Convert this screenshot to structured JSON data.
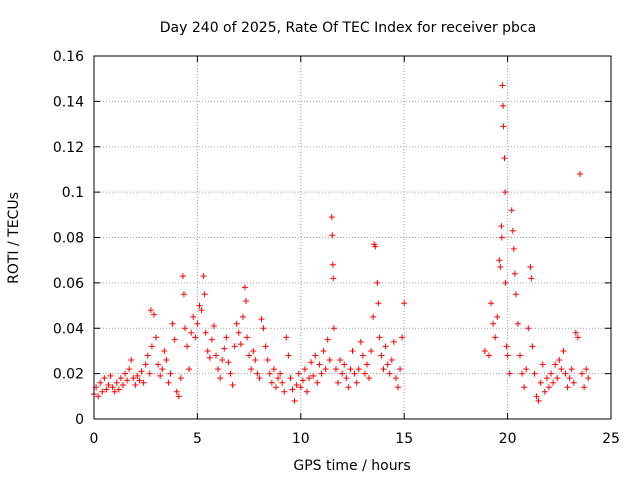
{
  "chart_data": {
    "type": "scatter",
    "title": "Day 240 of 2025, Rate Of TEC Index for receiver pbca",
    "xlabel": "GPS time / hours",
    "ylabel": "ROTI / TECUs",
    "xlim": [
      0,
      25
    ],
    "ylim": [
      0,
      0.16
    ],
    "x_ticks": [
      0,
      5,
      10,
      15,
      20,
      25
    ],
    "x_tick_labels": [
      "0",
      "5",
      "10",
      "15",
      "20",
      "25"
    ],
    "y_ticks": [
      0,
      0.02,
      0.04,
      0.06,
      0.08,
      0.1,
      0.12,
      0.14,
      0.16
    ],
    "y_tick_labels": [
      "0",
      "0.02",
      "0.04",
      "0.06",
      "0.08",
      "0.1",
      "0.12",
      "0.14",
      "0.16"
    ],
    "grid": true,
    "marker": "+",
    "series": [
      {
        "name": "ROTI",
        "color": "#ff0000",
        "points": [
          [
            0.0,
            0.011
          ],
          [
            0.1,
            0.014
          ],
          [
            0.2,
            0.01
          ],
          [
            0.3,
            0.016
          ],
          [
            0.4,
            0.012
          ],
          [
            0.5,
            0.018
          ],
          [
            0.6,
            0.013
          ],
          [
            0.7,
            0.015
          ],
          [
            0.8,
            0.019
          ],
          [
            0.9,
            0.014
          ],
          [
            1.0,
            0.012
          ],
          [
            1.1,
            0.016
          ],
          [
            1.2,
            0.013
          ],
          [
            1.3,
            0.018
          ],
          [
            1.4,
            0.015
          ],
          [
            1.5,
            0.02
          ],
          [
            1.6,
            0.017
          ],
          [
            1.7,
            0.022
          ],
          [
            1.8,
            0.026
          ],
          [
            1.9,
            0.018
          ],
          [
            2.0,
            0.015
          ],
          [
            2.1,
            0.019
          ],
          [
            2.2,
            0.017
          ],
          [
            2.3,
            0.021
          ],
          [
            2.4,
            0.016
          ],
          [
            2.5,
            0.024
          ],
          [
            2.6,
            0.028
          ],
          [
            2.7,
            0.02
          ],
          [
            2.8,
            0.032
          ],
          [
            2.9,
            0.046
          ],
          [
            2.75,
            0.048
          ],
          [
            3.0,
            0.036
          ],
          [
            3.1,
            0.024
          ],
          [
            3.2,
            0.019
          ],
          [
            3.3,
            0.022
          ],
          [
            3.4,
            0.03
          ],
          [
            3.5,
            0.026
          ],
          [
            3.6,
            0.016
          ],
          [
            3.7,
            0.02
          ],
          [
            3.8,
            0.042
          ],
          [
            3.9,
            0.035
          ],
          [
            4.0,
            0.012
          ],
          [
            4.1,
            0.01
          ],
          [
            4.2,
            0.018
          ],
          [
            4.3,
            0.063
          ],
          [
            4.35,
            0.055
          ],
          [
            4.4,
            0.04
          ],
          [
            4.5,
            0.032
          ],
          [
            4.6,
            0.022
          ],
          [
            4.7,
            0.038
          ],
          [
            4.8,
            0.045
          ],
          [
            4.9,
            0.036
          ],
          [
            5.0,
            0.042
          ],
          [
            5.1,
            0.05
          ],
          [
            5.2,
            0.048
          ],
          [
            5.3,
            0.063
          ],
          [
            5.35,
            0.055
          ],
          [
            5.4,
            0.038
          ],
          [
            5.5,
            0.03
          ],
          [
            5.6,
            0.027
          ],
          [
            5.7,
            0.035
          ],
          [
            5.8,
            0.041
          ],
          [
            5.9,
            0.028
          ],
          [
            6.0,
            0.022
          ],
          [
            6.1,
            0.018
          ],
          [
            6.2,
            0.026
          ],
          [
            6.3,
            0.031
          ],
          [
            6.4,
            0.036
          ],
          [
            6.5,
            0.025
          ],
          [
            6.6,
            0.02
          ],
          [
            6.7,
            0.015
          ],
          [
            6.8,
            0.032
          ],
          [
            6.9,
            0.042
          ],
          [
            7.0,
            0.038
          ],
          [
            7.1,
            0.033
          ],
          [
            7.2,
            0.045
          ],
          [
            7.3,
            0.058
          ],
          [
            7.35,
            0.052
          ],
          [
            7.4,
            0.036
          ],
          [
            7.5,
            0.028
          ],
          [
            7.6,
            0.022
          ],
          [
            7.7,
            0.03
          ],
          [
            7.8,
            0.026
          ],
          [
            7.9,
            0.02
          ],
          [
            8.0,
            0.018
          ],
          [
            8.1,
            0.044
          ],
          [
            8.2,
            0.04
          ],
          [
            8.3,
            0.032
          ],
          [
            8.4,
            0.026
          ],
          [
            8.5,
            0.02
          ],
          [
            8.6,
            0.016
          ],
          [
            8.7,
            0.022
          ],
          [
            8.8,
            0.014
          ],
          [
            8.9,
            0.018
          ],
          [
            9.0,
            0.02
          ],
          [
            9.1,
            0.016
          ],
          [
            9.2,
            0.012
          ],
          [
            9.3,
            0.036
          ],
          [
            9.4,
            0.028
          ],
          [
            9.5,
            0.018
          ],
          [
            9.6,
            0.013
          ],
          [
            9.7,
            0.008
          ],
          [
            9.8,
            0.015
          ],
          [
            9.9,
            0.02
          ],
          [
            10.0,
            0.014
          ],
          [
            10.1,
            0.017
          ],
          [
            10.2,
            0.022
          ],
          [
            10.3,
            0.012
          ],
          [
            10.4,
            0.018
          ],
          [
            10.5,
            0.025
          ],
          [
            10.6,
            0.019
          ],
          [
            10.7,
            0.028
          ],
          [
            10.8,
            0.016
          ],
          [
            10.9,
            0.024
          ],
          [
            11.0,
            0.02
          ],
          [
            11.1,
            0.03
          ],
          [
            11.2,
            0.022
          ],
          [
            11.3,
            0.035
          ],
          [
            11.4,
            0.026
          ],
          [
            11.5,
            0.089
          ],
          [
            11.52,
            0.081
          ],
          [
            11.55,
            0.068
          ],
          [
            11.57,
            0.062
          ],
          [
            11.6,
            0.04
          ],
          [
            11.7,
            0.022
          ],
          [
            11.8,
            0.016
          ],
          [
            11.9,
            0.026
          ],
          [
            12.0,
            0.02
          ],
          [
            12.1,
            0.024
          ],
          [
            12.2,
            0.018
          ],
          [
            12.3,
            0.014
          ],
          [
            12.4,
            0.022
          ],
          [
            12.5,
            0.03
          ],
          [
            12.6,
            0.02
          ],
          [
            12.7,
            0.016
          ],
          [
            12.8,
            0.022
          ],
          [
            12.9,
            0.034
          ],
          [
            13.0,
            0.028
          ],
          [
            13.1,
            0.02
          ],
          [
            13.2,
            0.024
          ],
          [
            13.3,
            0.018
          ],
          [
            13.4,
            0.03
          ],
          [
            13.5,
            0.045
          ],
          [
            13.55,
            0.077
          ],
          [
            13.6,
            0.076
          ],
          [
            13.7,
            0.06
          ],
          [
            13.75,
            0.051
          ],
          [
            13.8,
            0.036
          ],
          [
            13.9,
            0.028
          ],
          [
            14.0,
            0.022
          ],
          [
            14.1,
            0.032
          ],
          [
            14.2,
            0.024
          ],
          [
            14.3,
            0.02
          ],
          [
            14.4,
            0.026
          ],
          [
            14.5,
            0.034
          ],
          [
            14.6,
            0.018
          ],
          [
            14.7,
            0.014
          ],
          [
            14.8,
            0.022
          ],
          [
            14.9,
            0.036
          ],
          [
            15.0,
            0.051
          ],
          [
            18.9,
            0.03
          ],
          [
            19.1,
            0.028
          ],
          [
            19.2,
            0.051
          ],
          [
            19.3,
            0.042
          ],
          [
            19.4,
            0.036
          ],
          [
            19.5,
            0.045
          ],
          [
            19.6,
            0.07
          ],
          [
            19.65,
            0.067
          ],
          [
            19.7,
            0.085
          ],
          [
            19.72,
            0.08
          ],
          [
            19.75,
            0.147
          ],
          [
            19.78,
            0.138
          ],
          [
            19.8,
            0.129
          ],
          [
            19.85,
            0.115
          ],
          [
            19.88,
            0.1
          ],
          [
            19.9,
            0.06
          ],
          [
            19.95,
            0.032
          ],
          [
            20.0,
            0.028
          ],
          [
            20.1,
            0.02
          ],
          [
            20.2,
            0.092
          ],
          [
            20.25,
            0.083
          ],
          [
            20.3,
            0.075
          ],
          [
            20.35,
            0.064
          ],
          [
            20.4,
            0.055
          ],
          [
            20.5,
            0.042
          ],
          [
            20.6,
            0.028
          ],
          [
            20.7,
            0.02
          ],
          [
            20.8,
            0.014
          ],
          [
            20.9,
            0.022
          ],
          [
            21.0,
            0.04
          ],
          [
            21.1,
            0.067
          ],
          [
            21.15,
            0.062
          ],
          [
            21.2,
            0.032
          ],
          [
            21.3,
            0.02
          ],
          [
            21.4,
            0.01
          ],
          [
            21.5,
            0.008
          ],
          [
            21.6,
            0.016
          ],
          [
            21.7,
            0.024
          ],
          [
            21.8,
            0.012
          ],
          [
            21.9,
            0.018
          ],
          [
            22.0,
            0.014
          ],
          [
            22.1,
            0.02
          ],
          [
            22.2,
            0.016
          ],
          [
            22.3,
            0.024
          ],
          [
            22.4,
            0.018
          ],
          [
            22.5,
            0.026
          ],
          [
            22.6,
            0.022
          ],
          [
            22.7,
            0.03
          ],
          [
            22.8,
            0.02
          ],
          [
            22.9,
            0.014
          ],
          [
            23.0,
            0.018
          ],
          [
            23.1,
            0.022
          ],
          [
            23.2,
            0.016
          ],
          [
            23.3,
            0.038
          ],
          [
            23.4,
            0.036
          ],
          [
            23.5,
            0.108
          ],
          [
            23.6,
            0.02
          ],
          [
            23.7,
            0.014
          ],
          [
            23.8,
            0.022
          ],
          [
            23.9,
            0.018
          ]
        ]
      }
    ]
  }
}
